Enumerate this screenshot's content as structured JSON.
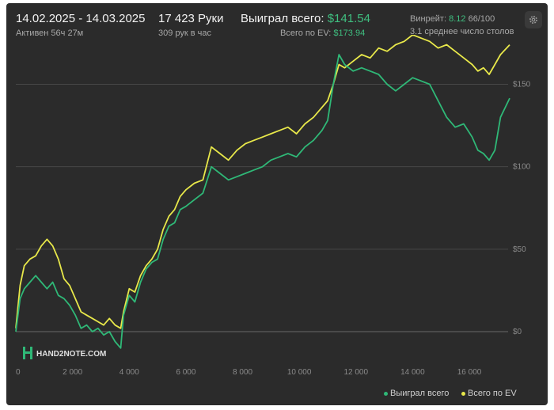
{
  "header": {
    "date_range": "14.02.2025 - 14.03.2025",
    "active_time": "Активен 56ч 27м",
    "hands": "17 423 Руки",
    "hands_per_hour": "309 рук в час",
    "won_label": "Выиграл всего:",
    "won_value": "$141.54",
    "ev_label": "Всего по EV:",
    "ev_value": "$173.94",
    "winrate_label": "Винрейт:",
    "winrate_value": "8.12",
    "winrate_rest": "66/100",
    "tables_text": "3.1 среднее число столов"
  },
  "logo_text": "HAND2NOTE.COM",
  "icons": {
    "settings": "gear-icon",
    "logo": "hand2note-logo-icon"
  },
  "colors": {
    "won": "#2fb877",
    "ev": "#e8e84a",
    "background": "#2b2b2b"
  },
  "legend": {
    "won": "Выиграл всего",
    "ev": "Всего по EV",
    "placement": "bottom-right"
  },
  "chart_data": {
    "type": "line",
    "x_ticks": [
      0,
      2000,
      4000,
      6000,
      8000,
      10000,
      12000,
      14000,
      16000
    ],
    "x_tick_labels": [
      "0",
      "2 000",
      "4 000",
      "6 000",
      "8 000",
      "10 000",
      "12 000",
      "14 000",
      "16 000"
    ],
    "y_ticks": [
      0,
      50,
      100,
      150
    ],
    "y_tick_labels": [
      "$0",
      "$50",
      "$100",
      "$150"
    ],
    "xlim": [
      0,
      17423
    ],
    "ylim": [
      -12,
      180
    ],
    "grid": "horizontal",
    "series": [
      {
        "name": "Выиграл всего",
        "color": "#2fb877",
        "points": [
          [
            0,
            0
          ],
          [
            150,
            20
          ],
          [
            300,
            26
          ],
          [
            500,
            30
          ],
          [
            700,
            34
          ],
          [
            900,
            30
          ],
          [
            1100,
            26
          ],
          [
            1300,
            30
          ],
          [
            1500,
            22
          ],
          [
            1700,
            20
          ],
          [
            1900,
            16
          ],
          [
            2100,
            10
          ],
          [
            2300,
            2
          ],
          [
            2500,
            4
          ],
          [
            2700,
            0
          ],
          [
            2900,
            2
          ],
          [
            3100,
            -2
          ],
          [
            3300,
            0
          ],
          [
            3500,
            -6
          ],
          [
            3700,
            -10
          ],
          [
            3800,
            10
          ],
          [
            4000,
            22
          ],
          [
            4200,
            18
          ],
          [
            4400,
            30
          ],
          [
            4600,
            38
          ],
          [
            4800,
            42
          ],
          [
            5000,
            44
          ],
          [
            5200,
            56
          ],
          [
            5400,
            64
          ],
          [
            5600,
            66
          ],
          [
            5800,
            74
          ],
          [
            6000,
            76
          ],
          [
            6300,
            80
          ],
          [
            6600,
            84
          ],
          [
            6900,
            100
          ],
          [
            7200,
            96
          ],
          [
            7500,
            92
          ],
          [
            7800,
            94
          ],
          [
            8100,
            96
          ],
          [
            8400,
            98
          ],
          [
            8700,
            100
          ],
          [
            9000,
            104
          ],
          [
            9300,
            106
          ],
          [
            9600,
            108
          ],
          [
            9900,
            106
          ],
          [
            10200,
            112
          ],
          [
            10500,
            116
          ],
          [
            10800,
            122
          ],
          [
            11000,
            128
          ],
          [
            11200,
            150
          ],
          [
            11400,
            168
          ],
          [
            11600,
            162
          ],
          [
            11900,
            158
          ],
          [
            12200,
            160
          ],
          [
            12500,
            158
          ],
          [
            12800,
            156
          ],
          [
            13100,
            150
          ],
          [
            13400,
            146
          ],
          [
            13700,
            150
          ],
          [
            14000,
            154
          ],
          [
            14300,
            152
          ],
          [
            14600,
            150
          ],
          [
            14900,
            140
          ],
          [
            15200,
            130
          ],
          [
            15500,
            124
          ],
          [
            15800,
            126
          ],
          [
            16100,
            118
          ],
          [
            16300,
            110
          ],
          [
            16500,
            108
          ],
          [
            16700,
            104
          ],
          [
            16900,
            110
          ],
          [
            17100,
            130
          ],
          [
            17423,
            141.54
          ]
        ]
      },
      {
        "name": "Всего по EV",
        "color": "#e8e84a",
        "points": [
          [
            0,
            2
          ],
          [
            150,
            28
          ],
          [
            300,
            40
          ],
          [
            500,
            44
          ],
          [
            700,
            46
          ],
          [
            900,
            52
          ],
          [
            1100,
            56
          ],
          [
            1300,
            52
          ],
          [
            1500,
            44
          ],
          [
            1700,
            32
          ],
          [
            1900,
            28
          ],
          [
            2100,
            20
          ],
          [
            2300,
            12
          ],
          [
            2500,
            10
          ],
          [
            2700,
            8
          ],
          [
            2900,
            6
          ],
          [
            3100,
            4
          ],
          [
            3300,
            8
          ],
          [
            3500,
            4
          ],
          [
            3700,
            2
          ],
          [
            3800,
            12
          ],
          [
            4000,
            26
          ],
          [
            4200,
            24
          ],
          [
            4400,
            34
          ],
          [
            4600,
            40
          ],
          [
            4800,
            44
          ],
          [
            5000,
            50
          ],
          [
            5200,
            62
          ],
          [
            5400,
            70
          ],
          [
            5600,
            74
          ],
          [
            5800,
            82
          ],
          [
            6000,
            86
          ],
          [
            6300,
            90
          ],
          [
            6600,
            92
          ],
          [
            6900,
            112
          ],
          [
            7200,
            108
          ],
          [
            7500,
            104
          ],
          [
            7800,
            110
          ],
          [
            8100,
            114
          ],
          [
            8400,
            116
          ],
          [
            8700,
            118
          ],
          [
            9000,
            120
          ],
          [
            9300,
            122
          ],
          [
            9600,
            124
          ],
          [
            9900,
            120
          ],
          [
            10200,
            126
          ],
          [
            10500,
            130
          ],
          [
            10800,
            136
          ],
          [
            11000,
            140
          ],
          [
            11200,
            150
          ],
          [
            11400,
            162
          ],
          [
            11600,
            160
          ],
          [
            11900,
            164
          ],
          [
            12200,
            168
          ],
          [
            12500,
            166
          ],
          [
            12800,
            172
          ],
          [
            13100,
            170
          ],
          [
            13400,
            174
          ],
          [
            13700,
            176
          ],
          [
            14000,
            180
          ],
          [
            14300,
            178
          ],
          [
            14600,
            176
          ],
          [
            14900,
            172
          ],
          [
            15200,
            174
          ],
          [
            15500,
            170
          ],
          [
            15800,
            166
          ],
          [
            16100,
            162
          ],
          [
            16300,
            158
          ],
          [
            16500,
            160
          ],
          [
            16700,
            156
          ],
          [
            16900,
            162
          ],
          [
            17100,
            168
          ],
          [
            17423,
            173.94
          ]
        ]
      }
    ]
  }
}
